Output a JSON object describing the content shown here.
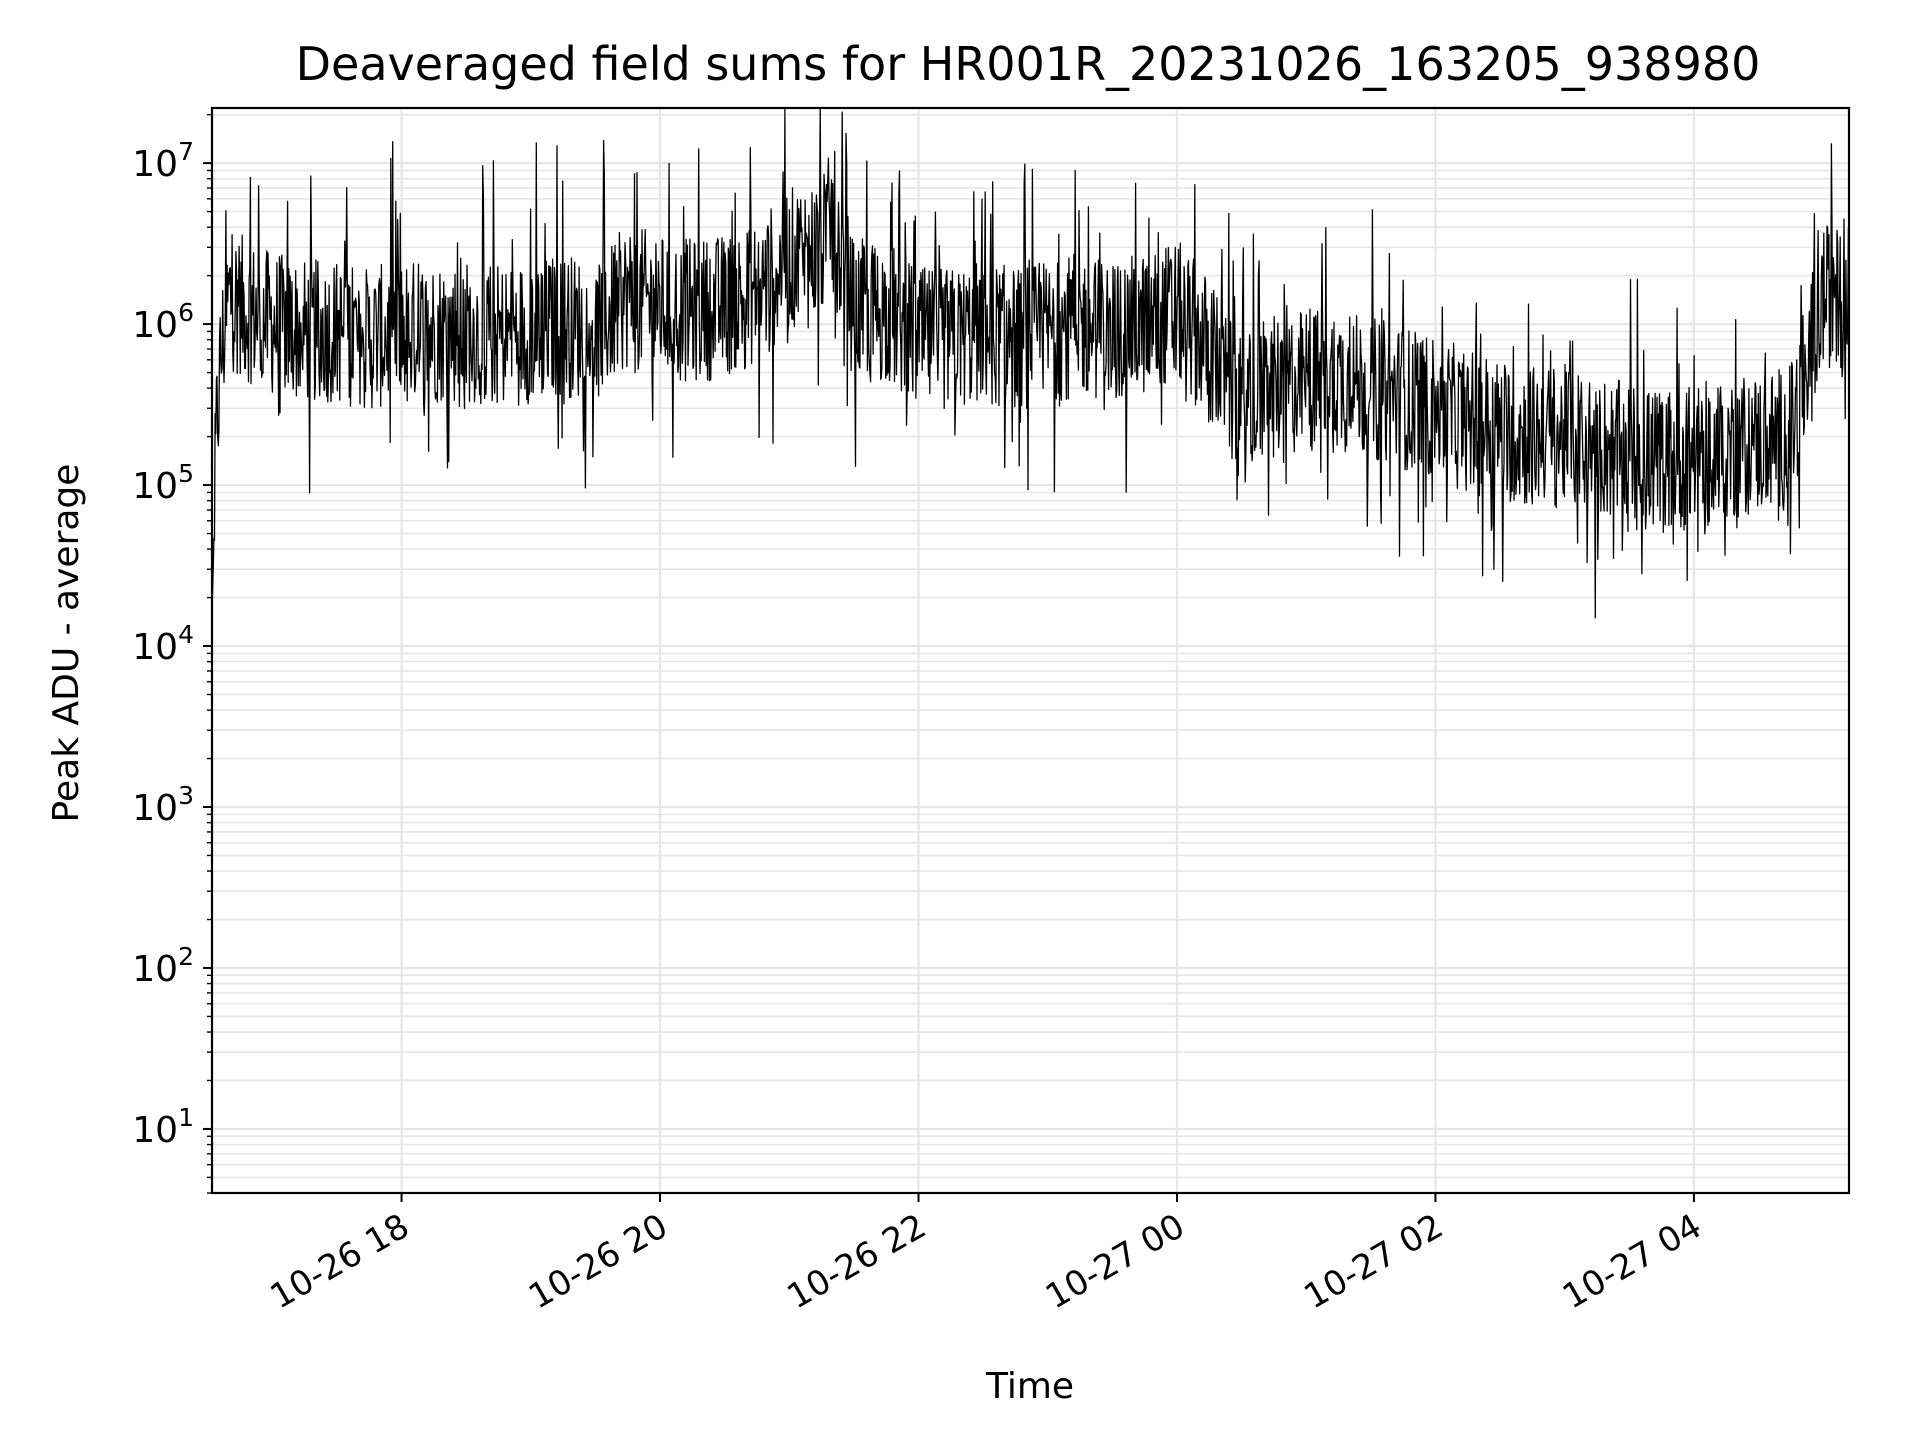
{
  "chart_data": {
    "type": "line",
    "title": "Deaveraged field sums for HR001R_20231026_163205_938980",
    "xlabel": "Time",
    "ylabel": "Peak ADU - average",
    "yscale": "log",
    "ylim": [
      4,
      22000000
    ],
    "xlim": [
      "2023-10-26 16:32",
      "2023-10-27 05:12"
    ],
    "grid": true,
    "line_color": "#000000",
    "grid_color": "#e6e6e6",
    "y_ticks": [
      {
        "value": 10,
        "base": "10",
        "exp": "1"
      },
      {
        "value": 100,
        "base": "10",
        "exp": "2"
      },
      {
        "value": 1000,
        "base": "10",
        "exp": "3"
      },
      {
        "value": 10000,
        "base": "10",
        "exp": "4"
      },
      {
        "value": 100000,
        "base": "10",
        "exp": "5"
      },
      {
        "value": 1000000,
        "base": "10",
        "exp": "6"
      },
      {
        "value": 10000000,
        "base": "10",
        "exp": "7"
      }
    ],
    "x_ticks": [
      {
        "value": "2023-10-26 18:00",
        "label": "10-26 18"
      },
      {
        "value": "2023-10-26 20:00",
        "label": "10-26 20"
      },
      {
        "value": "2023-10-26 22:00",
        "label": "10-26 22"
      },
      {
        "value": "2023-10-27 00:00",
        "label": "10-27 00"
      },
      {
        "value": "2023-10-27 02:00",
        "label": "10-27 02"
      },
      {
        "value": "2023-10-27 04:00",
        "label": "10-27 04"
      }
    ],
    "series": [
      {
        "x": [
          "2023-10-26 16:32",
          "2023-10-26 16:34",
          "2023-10-26 16:36",
          "2023-10-26 16:40",
          "2023-10-26 16:45",
          "2023-10-26 17:00",
          "2023-10-26 17:15",
          "2023-10-26 17:30",
          "2023-10-26 17:45",
          "2023-10-26 18:00",
          "2023-10-26 18:15",
          "2023-10-26 18:30",
          "2023-10-26 18:45",
          "2023-10-26 19:00",
          "2023-10-26 19:15",
          "2023-10-26 19:30",
          "2023-10-26 19:45",
          "2023-10-26 20:00",
          "2023-10-26 20:15",
          "2023-10-26 20:30",
          "2023-10-26 20:45",
          "2023-10-26 21:00",
          "2023-10-26 21:15",
          "2023-10-26 21:20",
          "2023-10-26 21:30",
          "2023-10-26 21:45",
          "2023-10-26 22:00",
          "2023-10-26 22:15",
          "2023-10-26 22:30",
          "2023-10-26 22:45",
          "2023-10-26 23:00",
          "2023-10-26 23:15",
          "2023-10-26 23:30",
          "2023-10-26 23:45",
          "2023-10-27 00:00",
          "2023-10-27 00:15",
          "2023-10-27 00:30",
          "2023-10-27 00:45",
          "2023-10-27 01:00",
          "2023-10-27 01:15",
          "2023-10-27 01:30",
          "2023-10-27 01:45",
          "2023-10-27 02:00",
          "2023-10-27 02:15",
          "2023-10-27 02:30",
          "2023-10-27 02:45",
          "2023-10-27 03:00",
          "2023-10-27 03:15",
          "2023-10-27 03:30",
          "2023-10-27 03:45",
          "2023-10-27 04:00",
          "2023-10-27 04:15",
          "2023-10-27 04:30",
          "2023-10-27 04:45",
          "2023-10-27 05:00",
          "2023-10-27 05:12"
        ],
        "y": [
          15000,
          200000,
          600000,
          1500000,
          1300000,
          1000000,
          900000,
          900000,
          800000,
          900000,
          900000,
          900000,
          850000,
          900000,
          1000000,
          900000,
          1500000,
          1300000,
          1200000,
          1300000,
          1600000,
          2500000,
          3000000,
          4500000,
          1200000,
          1200000,
          800000,
          800000,
          900000,
          800000,
          900000,
          1000000,
          900000,
          1000000,
          1200000,
          700000,
          280000,
          400000,
          450000,
          450000,
          400000,
          350000,
          300000,
          250000,
          220000,
          200000,
          200000,
          180000,
          150000,
          140000,
          150000,
          170000,
          180000,
          200000,
          1500000,
          1500000
        ]
      }
    ]
  }
}
